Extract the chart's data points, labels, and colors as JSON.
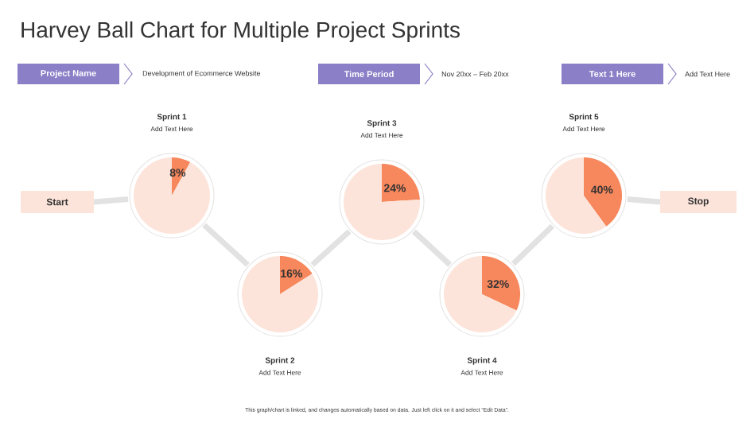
{
  "chart_data": [
    {
      "type": "other",
      "title": "Harvey Ball Chart for Multiple Project Sprints",
      "annotations": [
        "Project Name",
        "Development of Ecommerce Website",
        "Time Period",
        "Nov 20xx – Feb 20xx",
        "Text 1 Here",
        "Add Text Here",
        "Start",
        "Stop",
        "This graph/chart is linked, and changes automatically based on data. Just left click on it and select “Edit Data”."
      ]
    },
    {
      "type": "pie",
      "title": "Sprint 1",
      "subtitle": "Add Text Here",
      "categories": [
        null,
        null
      ],
      "values": [
        8,
        92
      ],
      "colors": [
        "#f7875c",
        "#fde4da"
      ],
      "value_labels": [
        "8%",
        null
      ]
    },
    {
      "type": "pie",
      "title": "Sprint 2",
      "subtitle": "Add Text Here",
      "categories": [
        null,
        null
      ],
      "values": [
        16,
        84
      ],
      "colors": [
        "#f7875c",
        "#fde4da"
      ],
      "value_labels": [
        "16%",
        null
      ]
    },
    {
      "type": "pie",
      "title": "Sprint 3",
      "subtitle": "Add Text Here",
      "categories": [
        null,
        null
      ],
      "values": [
        24,
        76
      ],
      "colors": [
        "#f7875c",
        "#fde4da"
      ],
      "value_labels": [
        "24%",
        null
      ]
    },
    {
      "type": "pie",
      "title": "Sprint 4",
      "subtitle": "Add Text Here",
      "categories": [
        null,
        null
      ],
      "values": [
        32,
        68
      ],
      "colors": [
        "#f7875c",
        "#fde4da"
      ],
      "value_labels": [
        "32%",
        null
      ]
    },
    {
      "type": "pie",
      "title": "Sprint 5",
      "subtitle": "Add Text Here",
      "categories": [
        null,
        null
      ],
      "values": [
        40,
        60
      ],
      "colors": [
        "#f7875c",
        "#fde4da"
      ],
      "value_labels": [
        "40%",
        null
      ]
    }
  ]
}
